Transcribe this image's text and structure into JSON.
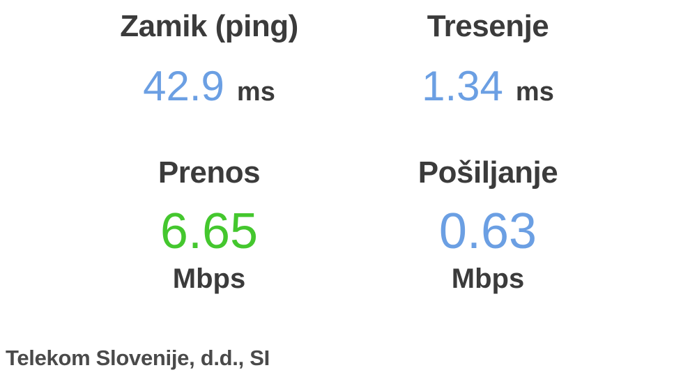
{
  "metrics": {
    "ping": {
      "label": "Zamik (ping)",
      "value": "42.9",
      "unit": "ms"
    },
    "jitter": {
      "label": "Tresenje",
      "value": "1.34",
      "unit": "ms"
    },
    "download": {
      "label": "Prenos",
      "value": "6.65",
      "unit": "Mbps"
    },
    "upload": {
      "label": "Pošiljanje",
      "value": "0.63",
      "unit": "Mbps"
    }
  },
  "isp": {
    "name": "Telekom Slovenije, d.d., SI"
  },
  "colors": {
    "value_blue": "#6b9fe3",
    "download_green": "#44c72e",
    "text_dark": "#3b3b3b",
    "isp_text": "#4a4a4a"
  }
}
